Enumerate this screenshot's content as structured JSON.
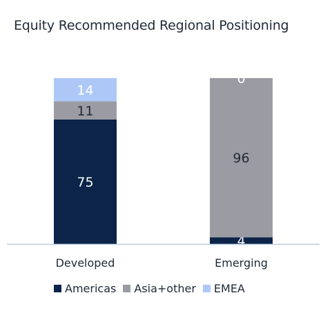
{
  "chart_data": {
    "type": "bar",
    "stacked": true,
    "title": "Equity Recommended Regional Positioning",
    "categories": [
      "Developed",
      "Emerging"
    ],
    "series": [
      {
        "name": "Americas",
        "values": [
          75,
          4
        ],
        "color": "#0b2447",
        "label_color": "#ffffff"
      },
      {
        "name": "Asia+other",
        "values": [
          11,
          96
        ],
        "color": "#9b9ca3",
        "label_color": "#1f2937"
      },
      {
        "name": "EMEA",
        "values": [
          14,
          0
        ],
        "color": "#adc8f7",
        "label_color": "#ffffff"
      }
    ],
    "ylim": [
      0,
      100
    ],
    "legend_position": "bottom",
    "grid": false,
    "baseline_color": "#b9cbe6"
  }
}
